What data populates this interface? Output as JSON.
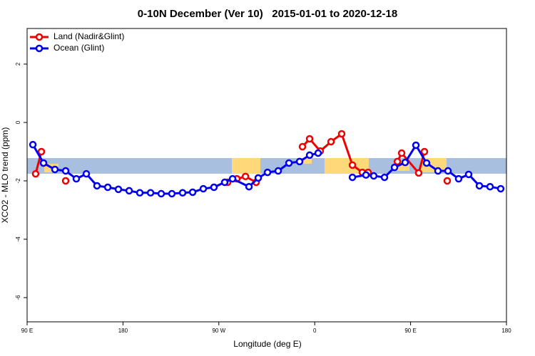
{
  "chart_data": {
    "type": "line",
    "title": "0-10N December (Ver 10)   2015-01-01 to 2020-12-18",
    "x_label": "Longitude (deg E)",
    "y_label": "XCO2 - MLO trend (ppm)",
    "xlim": [
      90,
      540
    ],
    "ylim": [
      -6.83,
      3.22
    ],
    "xticks": [
      {
        "value": 90,
        "label": "90 E"
      },
      180,
      {
        "value": 270,
        "label": "90 W"
      },
      {
        "value": 360,
        "label": "0"
      },
      {
        "value": 450,
        "label": "90 E"
      },
      {
        "value": 540,
        "label": "180"
      }
    ],
    "yticks": [
      2,
      0,
      -2,
      -4,
      -6
    ],
    "legend": "top-left",
    "series": [
      {
        "name": "Land (Nadir&Glint)",
        "color": "#ee0000",
        "x": [
          98,
          103.4,
          110,
          126.2,
          200,
          278.2,
          286.9,
          295,
          305,
          330,
          348.5,
          355.2,
          365.2,
          375.3,
          385.3,
          395.4,
          404.7,
          410.1,
          420,
          437.6,
          441.6,
          457.6,
          463,
          470,
          484.4
        ],
        "values": [
          -1.76,
          -1.0,
          null,
          -2.0,
          null,
          -2.05,
          -1.93,
          -1.85,
          -2.05,
          null,
          -0.83,
          -0.56,
          -0.98,
          -0.66,
          -0.39,
          -1.46,
          -1.71,
          -1.71,
          null,
          -1.34,
          -1.05,
          -1.73,
          -1.0,
          null,
          -2.0
        ]
      },
      {
        "name": "Ocean (Glint)",
        "color": "#0000ee",
        "x": [
          95.4,
          105.4,
          116.1,
          126.2,
          136.2,
          145.6,
          155.6,
          165.7,
          175.7,
          185.8,
          195.8,
          205.9,
          215.9,
          225.9,
          236,
          245.4,
          255.4,
          265.4,
          275.5,
          282.9,
          298.3,
          307,
          315.7,
          325.7,
          335.8,
          345.8,
          355.2,
          363.2,
          380,
          395.4,
          408.1,
          415.4,
          425.5,
          434.9,
          444.9,
          455,
          465,
          475.7,
          485.1,
          495.1,
          504.5,
          514.6,
          524.6,
          534.6
        ],
        "values": [
          -0.76,
          -1.39,
          -1.61,
          -1.66,
          -1.93,
          -1.76,
          -2.17,
          -2.22,
          -2.29,
          -2.34,
          -2.41,
          -2.41,
          -2.44,
          -2.44,
          -2.41,
          -2.39,
          -2.27,
          -2.22,
          -2.05,
          -1.93,
          -2.2,
          -1.9,
          -1.71,
          -1.66,
          -1.39,
          -1.34,
          -1.12,
          -1.05,
          null,
          -1.88,
          -1.8,
          -1.83,
          -1.88,
          -1.54,
          -1.37,
          -0.78,
          -1.39,
          -1.66,
          -1.66,
          -1.93,
          -1.78,
          -2.17,
          -2.2,
          -2.27
        ]
      }
    ]
  }
}
